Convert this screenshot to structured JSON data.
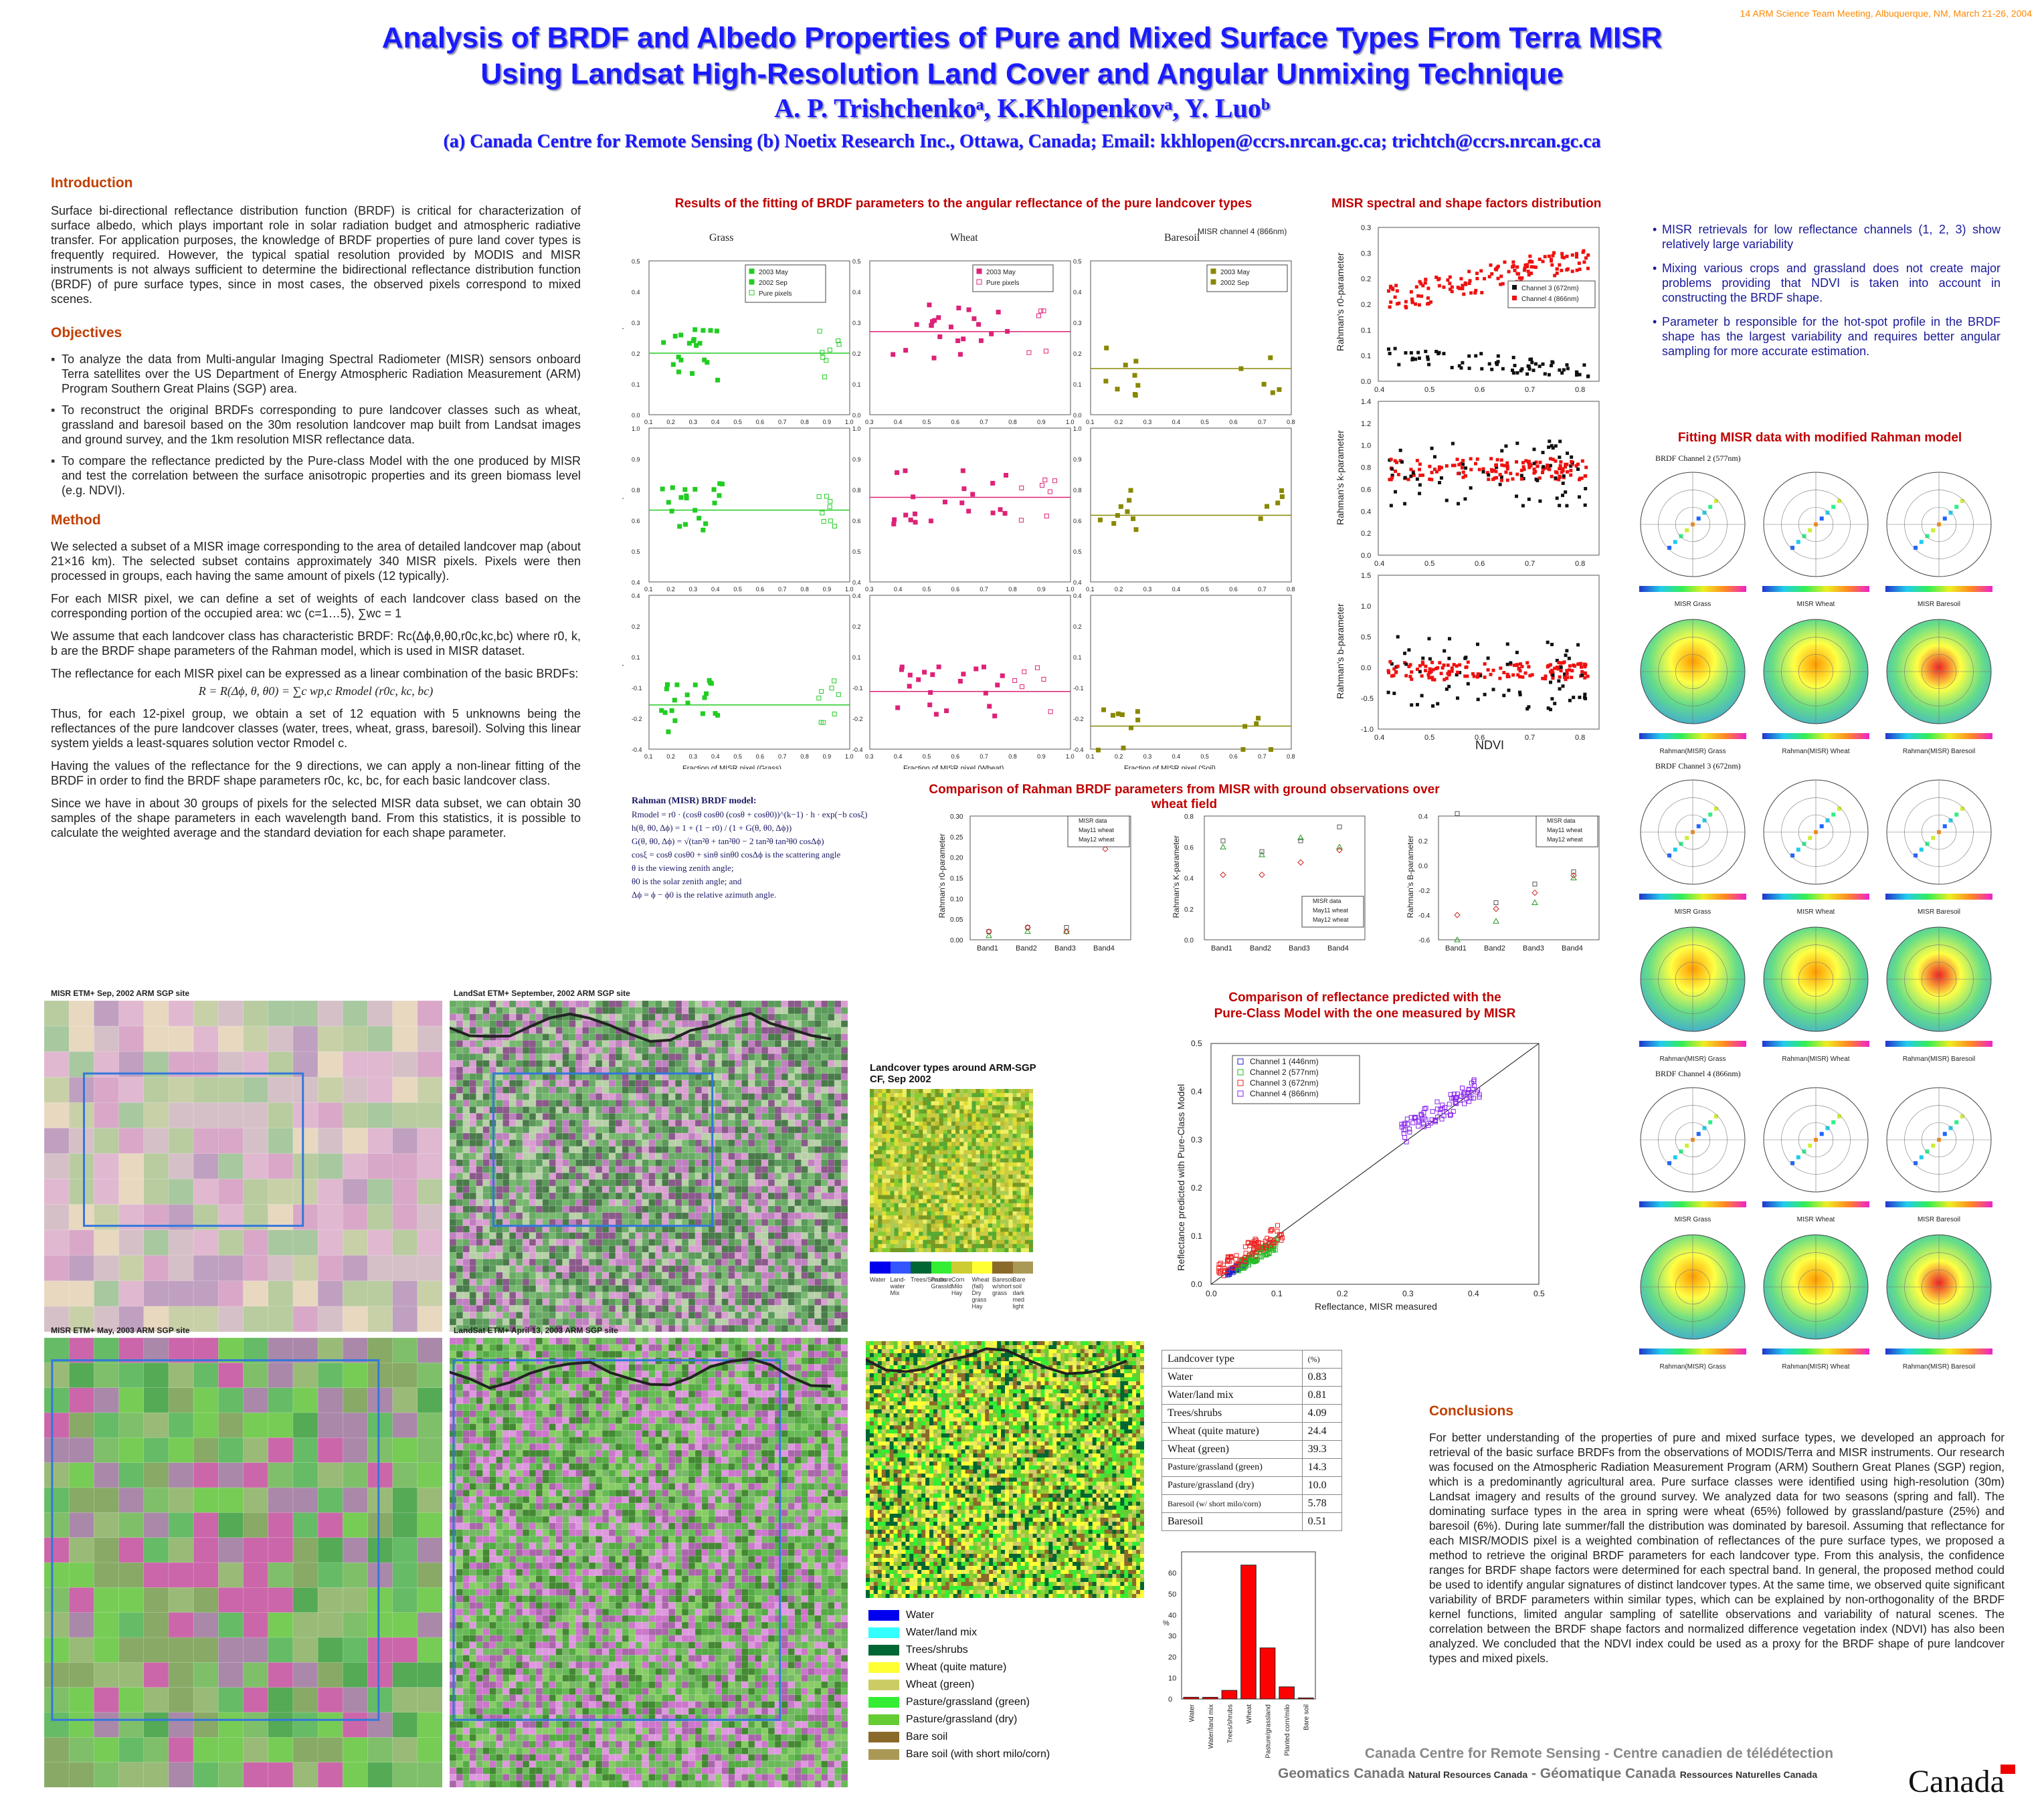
{
  "header": {
    "meeting": "14 ARM Science Team Meeting, Albuquerque, NM, March 21-26, 2004",
    "title_line1": "Analysis of BRDF and Albedo Properties of Pure and Mixed Surface Types From Terra MISR",
    "title_line2": "Using Landsat High-Resolution Land Cover and Angular Unmixing Technique",
    "authors": "A. P. Trishchenkoᵃ, K.Khlopenkovᵃ, Y. Luoᵇ",
    "affiliation": "(a) Canada Centre for Remote Sensing (b) Noetix Research Inc., Ottawa, Canada;  Email: kkhlopen@ccrs.nrcan.gc.ca; trichtch@ccrs.nrcan.gc.ca"
  },
  "intro": {
    "heading": "Introduction",
    "text": "Surface bi-directional reflectance distribution function (BRDF) is critical for characterization of surface albedo, which plays important role in solar radiation budget and atmospheric radiative transfer. For application purposes, the knowledge of BRDF properties of pure land cover types is frequently required. However, the typical spatial resolution provided by MODIS and MISR instruments is not always sufficient to determine the bidirectional reflectance distribution function (BRDF) of pure surface types, since in most cases, the observed pixels correspond to mixed scenes."
  },
  "objectives": {
    "heading": "Objectives",
    "items": [
      "To analyze the data from Multi-angular Imaging Spectral Radiometer (MISR) sensors onboard Terra satellites over the US Department of Energy Atmospheric Radiation Measurement (ARM) Program Southern Great Plains (SGP) area.",
      "To reconstruct the original BRDFs corresponding to pure landcover classes such as wheat, grassland and baresoil based on the 30m resolution landcover map built from Landsat images and ground survey, and the 1km resolution MISR reflectance data.",
      "To compare the reflectance predicted by the Pure-class Model with the one produced by MISR and test the correlation between the surface anisotropic properties and its green biomass level (e.g. NDVI)."
    ]
  },
  "method": {
    "heading": "Method",
    "p1": "We selected a subset of a MISR image corresponding to the area of detailed landcover map (about 21×16 km). The selected subset contains approximately 340 MISR pixels. Pixels were then processed in groups, each having the same amount of pixels (12 typically).",
    "p2": "For each MISR pixel, we can define a set of weights of each landcover class based on the corresponding portion of the occupied area:  wc (c=1…5), ∑wc = 1",
    "p3": "We assume that each landcover class has characteristic BRDF:  Rc(Δϕ,θ,θ0,r0c,kc,bc) where r0, k, b are the BRDF shape parameters of the Rahman model, which is used in MISR dataset.",
    "p4": "The reflectance for each MISR pixel can be expressed as a linear combination of the basic BRDFs:",
    "formula": "R = R(Δϕ, θ, θ0) = ∑c wp,c Rmodel (r0c, kc, bc)",
    "p5": "Thus, for each 12-pixel group, we obtain a set of 12 equation with 5 unknowns being the reflectances of the pure landcover classes (water, trees, wheat, grass, baresoil). Solving this linear system yields a least-squares solution vector Rmodel c.",
    "p6": "Having the values of the reflectance for the 9 directions, we can apply a non-linear fitting of the BRDF in order to find the BRDF shape parameters r0c, kc, bc, for each basic landcover class.",
    "p7": "Since we have in about 30 groups of pixels for the selected MISR data subset, we can obtain 30 samples of the shape parameters in each wavelength band. From this statistics, it is possible to calculate the weighted average and the standard deviation for each shape parameter."
  },
  "fit_panel": {
    "title": "Results of the fitting of BRDF parameters to the angular reflectance of the pure landcover types",
    "columns": [
      "Grass",
      "Wheat",
      "Baresoil"
    ],
    "channel_note": "MISR channel 4 (866nm)",
    "ylabels": [
      "Rahman r0-parameter",
      "Rahman k-parameter",
      "Rahman b-parameter"
    ],
    "xlabels": [
      "Fraction of MISR pixel (Grass)",
      "Fraction of MISR pixel (Wheat)",
      "Fraction of MISR pixel (Soil)"
    ],
    "legend_grass": [
      "2003 May",
      "2002 Sep",
      "Pure pixels"
    ],
    "legend_wheat": [
      "2003 May",
      "Pure pixels"
    ],
    "legend_soil": [
      "2003 May",
      "2002 Sep"
    ]
  },
  "model_box": {
    "title": "Rahman (MISR) BRDF model:",
    "lines": [
      "Rmodel = r0 · (cosθ cosθ0 (cosθ + cosθ0))^(k−1) · h · exp(−b cosξ)",
      "h(θ, θ0, Δϕ) = 1 + (1 − r0) / (1 + G(θ, θ0, Δϕ))",
      "G(θ, θ0, Δϕ) = √(tan²θ + tan²θ0 − 2 tan²θ tan²θ0 cosΔϕ)",
      "cosξ = cosθ cosθ0 + sinθ sinθ0 cosΔϕ   is the scattering angle",
      "θ is the viewing zenith angle;",
      "θ0 is the solar zenith angle; and",
      "Δϕ = ϕ − ϕ0 is the relative azimuth angle."
    ]
  },
  "spectral_panel": {
    "title": "MISR spectral and shape factors distribution",
    "ylabels": [
      "Rahman's r0-parameter",
      "Rahman's k-parameter",
      "Rahman's b-parameter"
    ],
    "xlabel": "NDVI",
    "legend": [
      "Channel 3 (672nm)",
      "Channel 4 (866nm)"
    ]
  },
  "notes": [
    "MISR retrievals for low reflectance channels (1, 2, 3) show relatively large variability",
    "Mixing various crops and grassland does not create major problems providing that NDVI is taken into account in constructing the BRDF shape.",
    "Parameter b responsible for the hot-spot profile in the BRDF shape has the largest variability and requires better angular sampling for more accurate estimation."
  ],
  "ground_panel": {
    "title": "Comparison of Rahman BRDF parameters from MISR with ground observations over wheat field",
    "ylabels": [
      "Rahman's r0-parameter",
      "Rahman's K-parameter",
      "Rahman's B-parameter"
    ],
    "bands": [
      "Band1",
      "Band2",
      "Band3",
      "Band4"
    ],
    "legend": [
      "MISR data",
      "May11 wheat",
      "May12 wheat"
    ]
  },
  "rahman_fit": {
    "title": "Fitting MISR data with modified  Rahman model",
    "channels": [
      "BRDF Channel 2 (577nm)",
      "BRDF Channel 3 (672nm)",
      "BRDF Channel 4 (866nm)"
    ],
    "cols_top": [
      "MISR Grass",
      "MISR Wheat",
      "MISR Baresoil"
    ],
    "cols_bottom": [
      "Rahman(MISR) Grass",
      "Rahman(MISR) Wheat",
      "Rahman(MISR) Baresoil"
    ]
  },
  "images": {
    "misr_sep": "MISR ETM+ Sep, 2002   ARM SGP site",
    "landsat_sep": "LandSat ETM+ September, 2002    ARM SGP site",
    "misr_may": "MISR ETM+ May, 2003   ARM SGP site",
    "landsat_apr": "LandSat ETM+ April 13, 2003    ARM SGP site",
    "landcover_title": "Landcover types around ARM-SGP CF, Sep 2002",
    "strip_labels": [
      "Water",
      "Land-water Mix",
      "Trees/Shrubs",
      "Pasture Grassld",
      "Corn Milo Hay",
      "Wheat (fall) Dry grass Hay",
      "Baresoil w/short grass",
      "Bare soil dark med light"
    ]
  },
  "compare_panel": {
    "title_line1": "Comparison of reflectance predicted with the",
    "title_line2": "Pure-Class Model with the one measured by MISR",
    "xlabel": "Reflectance, MISR measured",
    "ylabel": "Reflectance predicted with Pure-Class Model",
    "legend": [
      "Channel 1 (446nm)",
      "Channel 2 (577nm)",
      "Channel 3 (672nm)",
      "Channel 4 (866nm)"
    ]
  },
  "landcover_table": {
    "header": [
      "Landcover type",
      "(%)"
    ],
    "rows": [
      [
        "Water",
        "0.83"
      ],
      [
        "Water/land mix",
        "0.81"
      ],
      [
        "Trees/shrubs",
        "4.09"
      ],
      [
        "Wheat (quite mature)",
        "24.4"
      ],
      [
        "Wheat (green)",
        "39.3"
      ],
      [
        "Pasture/grassland (green)",
        "14.3"
      ],
      [
        "Pasture/grassland (dry)",
        "10.0"
      ],
      [
        "Baresoil (w/ short milo/corn)",
        "5.78"
      ],
      [
        "Baresoil",
        "0.51"
      ]
    ]
  },
  "legend_list": [
    "Water",
    "Water/land mix",
    "Trees/shrubs",
    "Wheat (quite mature)",
    "Wheat (green)",
    "Pasture/grassland (green)",
    "Pasture/grassland (dry)",
    "Bare soil",
    "Bare soil (with short milo/corn)"
  ],
  "legend_colors": [
    "#0000ee",
    "#33ffff",
    "#006633",
    "#ffff33",
    "#cccc66",
    "#33ee33",
    "#66cc33",
    "#8a6a2a",
    "#aa9955"
  ],
  "chart_data": {
    "type": "bar",
    "categories": [
      "Water",
      "Water/land mix",
      "Trees/shrubs",
      "Wheat",
      "Pasture/grassland",
      "Planted corn/milo",
      "Bare soil"
    ],
    "values": [
      0.83,
      0.81,
      4.09,
      63.7,
      24.3,
      5.78,
      0.51
    ],
    "ylabel": "%",
    "yticks": [
      "0",
      "10",
      "20",
      "30",
      "40",
      "50",
      "60"
    ],
    "ylim": [
      0,
      70
    ],
    "color": "#ff0000"
  },
  "conclusions": {
    "heading": "Conclusions",
    "text": "For better understanding of the properties of pure and mixed surface types, we developed an approach for retrieval of the basic surface BRDFs from the observations of MODIS/Terra and MISR instruments. Our research was focused on the Atmospheric Radiation Measurement Program (ARM) Southern Great Planes (SGP) region, which is a predominantly agricultural area. Pure surface classes were identified using high-resolution (30m) Landsat imagery and results of the ground survey. We analyzed data for two seasons (spring and fall). The dominating surface types in the area in spring were wheat (65%) followed by grassland/pasture (25%) and baresoil (6%). During late summer/fall the distribution was dominated by baresoil. Assuming that reflectance for each MISR/MODIS pixel is a weighted combination of reflectances of the pure surface types, we proposed a method to retrieve the original BRDF parameters for each landcover type. From this analysis, the confidence ranges for BRDF shape factors were determined for each spectral band. In general, the proposed method could be used to identify angular signatures of distinct landcover types. At the same time, we observed quite significant variability of BRDF parameters within similar types, which can be explained by non-orthogonality of the BRDF kernel functions, limited angular sampling of satellite observations and variability of natural scenes. The correlation between the BRDF shape factors and normalized difference vegetation index (NDVI) has also been analyzed. We concluded that the NDVI index could be used as a proxy for the BRDF shape of pure landcover types and mixed pixels."
  },
  "footer": {
    "line1": "Canada Centre for Remote Sensing - Centre canadien de télédétection",
    "line2a": "Geomatics Canada",
    "line2b": "Natural Resources  Canada",
    "line2c": "- Géomatique Canada",
    "line2d": "Ressources  Naturelles  Canada",
    "wordmark": "Canada"
  }
}
